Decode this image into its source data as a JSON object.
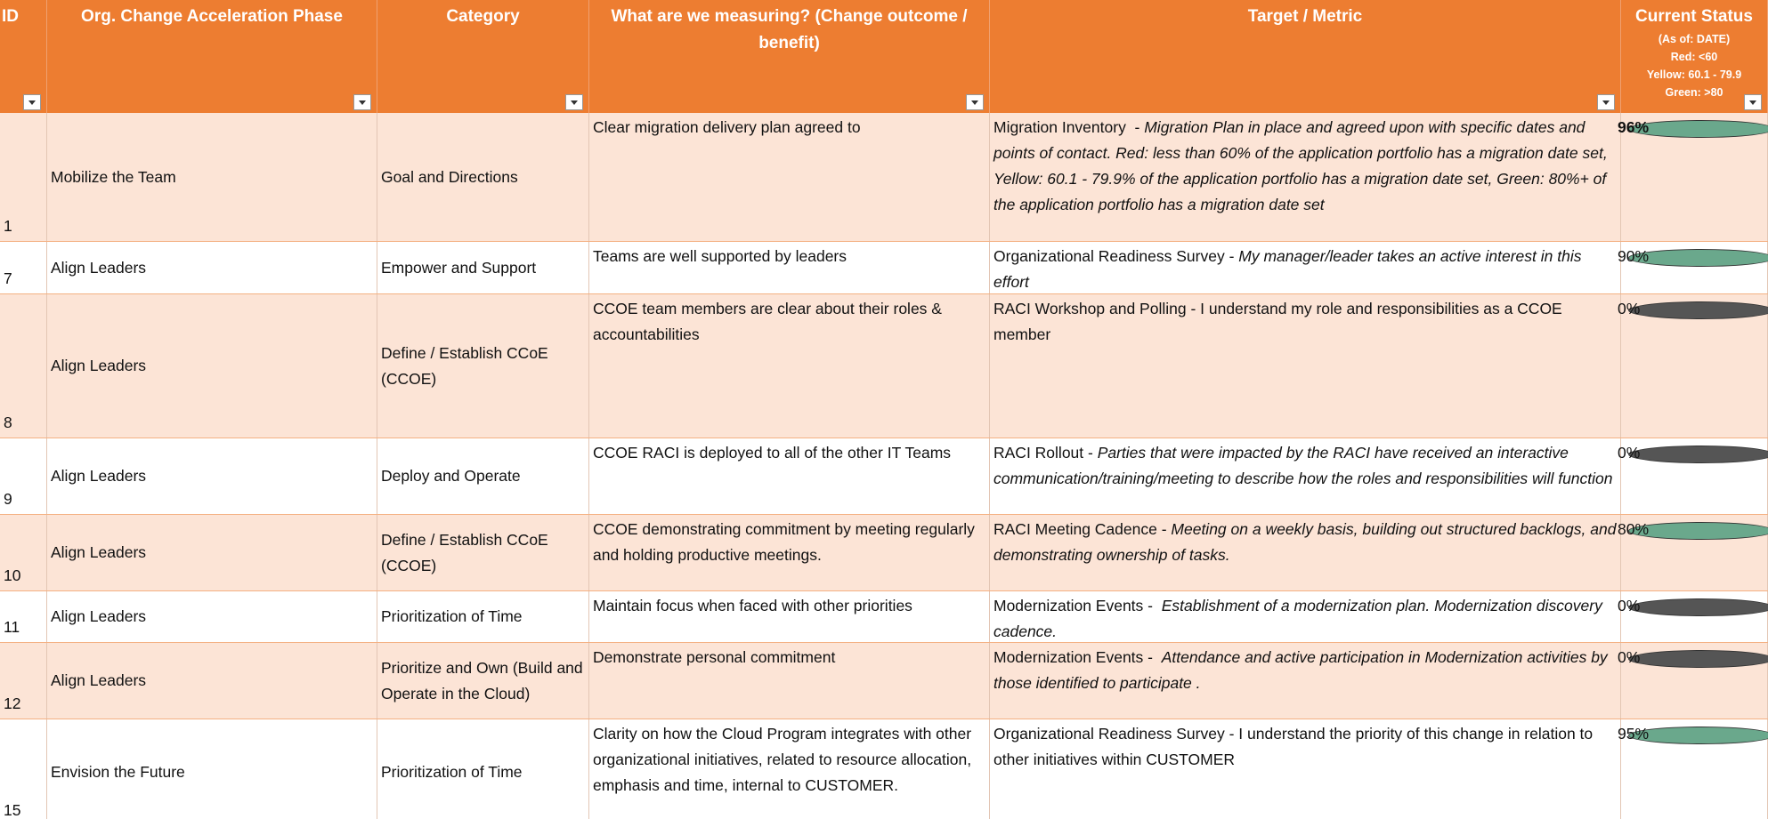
{
  "header": {
    "columns": [
      "ID",
      "Org. Change Acceleration Phase",
      "Category",
      "What are we measuring? (Change outcome / benefit)",
      "Target / Metric",
      "Current Status"
    ],
    "status_notes": [
      "(As of: DATE)",
      "Red: <60",
      "Yellow: 60.1 - 79.9",
      "Green: >80"
    ]
  },
  "table": {
    "rows": [
      {
        "id": "1",
        "phase": "Mobilize the Team",
        "category": "Goal and Directions",
        "measure": "Clear migration delivery plan agreed to",
        "target": [
          {
            "text": "Migration Inventory  - ",
            "italic": false
          },
          {
            "text": "Migration Plan in place and agreed upon with specific dates and points of contact. Red: less than 60% of the application portfolio has a migration date set, Yellow: 60.1 - 79.9% of the application portfolio has a migration date set, Green: 80%+ of the application portfolio has a migration date set",
            "italic": true
          }
        ],
        "status_color": "#6aa88c",
        "status": "96%",
        "bold": true
      },
      {
        "id": "7",
        "phase": "Align Leaders",
        "category": "Empower and Support",
        "measure": "Teams are well supported by leaders",
        "target": [
          {
            "text": "Organizational Readiness Survey - ",
            "italic": false
          },
          {
            "text": "My manager/leader takes an active interest in this effort",
            "italic": true
          }
        ],
        "status_color": "#6aa88c",
        "status": "90%",
        "bold": false
      },
      {
        "id": "8",
        "phase": "Align Leaders",
        "category": "Define / Establish CCoE (CCOE)",
        "measure": "CCOE team members are clear about their roles & accountabilities",
        "target": [
          {
            "text": "RACI Workshop and Polling - I understand my role and responsibilities as a CCOE member",
            "italic": false
          }
        ],
        "status_color": "#555555",
        "status": "0%",
        "bold": false
      },
      {
        "id": "9",
        "phase": "Align Leaders",
        "category": "Deploy and Operate",
        "measure": "CCOE RACI is deployed to all of the other IT Teams",
        "target": [
          {
            "text": "RACI Rollout - ",
            "italic": false
          },
          {
            "text": "Parties that were impacted by the RACI have received an interactive communication/training/meeting to describe how the roles and responsibilities will function",
            "italic": true
          }
        ],
        "status_color": "#555555",
        "status": "0%",
        "bold": false
      },
      {
        "id": "10",
        "phase": "Align Leaders",
        "category": "Define / Establish CCoE (CCOE)",
        "measure": "CCOE demonstrating commitment by meeting regularly and holding productive meetings.",
        "target": [
          {
            "text": "RACI Meeting Cadence - ",
            "italic": false
          },
          {
            "text": "Meeting on a weekly basis, building out structured backlogs, and demonstrating ownership of tasks.",
            "italic": true
          }
        ],
        "status_color": "#6aa88c",
        "status": "80%",
        "bold": false
      },
      {
        "id": "11",
        "phase": "Align Leaders",
        "category": "Prioritization of Time",
        "measure": "Maintain focus when faced with other priorities",
        "target": [
          {
            "text": "Modernization Events -  ",
            "italic": false
          },
          {
            "text": "Establishment of a modernization plan. Modernization discovery cadence.",
            "italic": true
          }
        ],
        "status_color": "#555555",
        "status": "0%",
        "bold": false
      },
      {
        "id": "12",
        "phase": "Align Leaders",
        "category": "Prioritize and Own (Build and Operate in the Cloud)",
        "measure": "Demonstrate personal commitment",
        "target": [
          {
            "text": "Modernization Events -  ",
            "italic": false
          },
          {
            "text": "Attendance and active participation in Modernization activities by those identified to participate .",
            "italic": true
          }
        ],
        "status_color": "#555555",
        "status": "0%",
        "bold": false
      },
      {
        "id": "15",
        "phase": "Envision the Future",
        "category": "Prioritization of Time",
        "measure": "Clarity on how the Cloud Program integrates with other organizational initiatives, related to resource allocation, emphasis and time, internal to CUSTOMER.",
        "target": [
          {
            "text": "Organizational Readiness Survey - I understand the priority of this change in relation to other initiatives within CUSTOMER",
            "italic": false
          }
        ],
        "status_color": "#6aa88c",
        "status": "95%",
        "bold": false
      }
    ]
  }
}
